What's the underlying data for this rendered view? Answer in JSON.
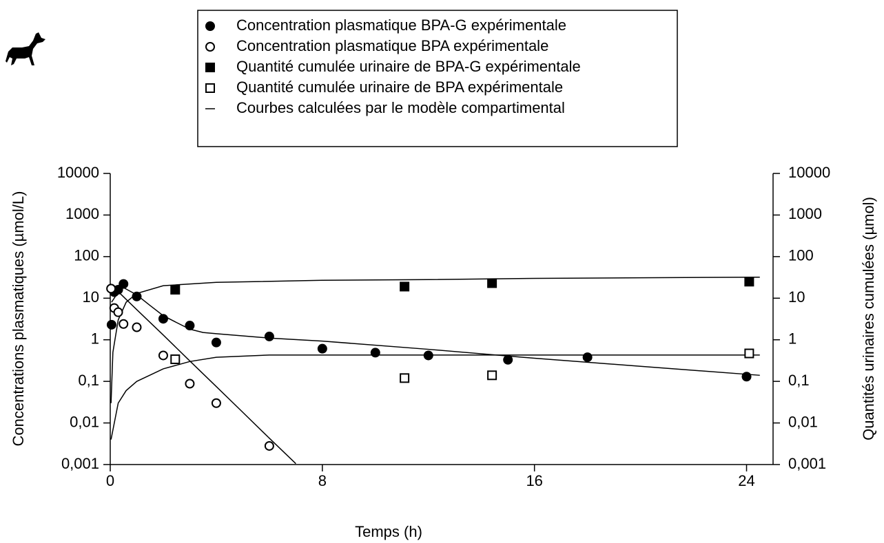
{
  "chart_data": {
    "type": "scatter",
    "log_scale": true,
    "x_label": "Temps (h)",
    "y_label": "Concentrations plasmatiques (µmol/L)",
    "y2_label": "Quantités urinaires cumulées (µmol)",
    "xlim": [
      0,
      25
    ],
    "xticks": [
      0,
      8,
      16,
      24
    ],
    "ylim": [
      0.001,
      10000
    ],
    "yticks": [
      {
        "value": 0.001,
        "label": "0,001"
      },
      {
        "value": 0.01,
        "label": "0,01"
      },
      {
        "value": 0.1,
        "label": "0,1"
      },
      1,
      10,
      100,
      1000,
      10000
    ],
    "y2lim": [
      0.001,
      10000
    ],
    "y2ticks": [
      {
        "value": 0.001,
        "label": "0,001"
      },
      {
        "value": 0.01,
        "label": "0,01"
      },
      {
        "value": 0.1,
        "label": "0,1"
      },
      1,
      10,
      100,
      1000,
      10000
    ],
    "series": [
      {
        "name": "Concentration plasmatique BPA-G expérimentale",
        "marker": "filled-circle",
        "color": "#000000",
        "x": [
          0.05,
          0.15,
          0.3,
          0.5,
          1,
          2,
          3,
          4,
          6,
          8,
          10,
          12,
          15,
          18,
          24
        ],
        "values": [
          2.3,
          14,
          16,
          22,
          11,
          3.2,
          2.2,
          0.86,
          1.2,
          0.61,
          0.49,
          0.42,
          0.33,
          0.38,
          0.13
        ]
      },
      {
        "name": "Concentration plasmatique BPA expérimentale",
        "marker": "open-circle",
        "color": "#000000",
        "x": [
          0.03,
          0.15,
          0.3,
          0.5,
          1,
          2,
          3,
          4,
          6
        ],
        "values": [
          17,
          5.8,
          4.6,
          2.4,
          2,
          0.42,
          0.088,
          0.03,
          0.0028
        ]
      },
      {
        "name": "Quantité cumulée urinaire de BPA-G expérimentale",
        "marker": "filled-square",
        "color": "#000000",
        "axis": "y2",
        "x": [
          2.45,
          11.1,
          14.4,
          24.1
        ],
        "values": [
          16,
          19,
          23,
          25
        ]
      },
      {
        "name": "Quantité cumulée urinaire de BPA expérimentale",
        "marker": "open-square",
        "color": "#000000",
        "axis": "y2",
        "x": [
          2.45,
          11.1,
          14.4,
          24.1
        ],
        "values": [
          0.34,
          0.12,
          0.14,
          0.47
        ]
      }
    ],
    "model_curves": {
      "name": "Courbes calculées par le modèle compartimental",
      "color": "#000000",
      "lines": [
        {
          "x": [
            0.05,
            0.3,
            0.5,
            1,
            1.5,
            2,
            2.5,
            3,
            3.5,
            4,
            6,
            8,
            12,
            16,
            20,
            24.5
          ],
          "values": [
            8,
            14,
            18,
            12,
            6.7,
            3.8,
            2.6,
            1.8,
            1.5,
            1.4,
            1.1,
            0.93,
            0.59,
            0.36,
            0.23,
            0.14
          ]
        },
        {
          "x": [
            0,
            1,
            2,
            3,
            4,
            5,
            6,
            7
          ],
          "values": [
            22,
            5.3,
            1.3,
            0.31,
            0.075,
            0.018,
            0.0043,
            0.00105
          ]
        },
        {
          "axis": "y2",
          "x": [
            0.03,
            0.1,
            0.3,
            0.6,
            1,
            2,
            4,
            8,
            12,
            16,
            20,
            24.5
          ],
          "values": [
            0.03,
            0.5,
            3,
            8,
            13,
            20,
            24,
            27,
            28,
            30,
            31,
            32
          ]
        },
        {
          "axis": "y2",
          "x": [
            0.03,
            0.3,
            0.6,
            1,
            2,
            3,
            4,
            6,
            24.5
          ],
          "values": [
            0.004,
            0.03,
            0.06,
            0.1,
            0.2,
            0.3,
            0.38,
            0.43,
            0.43
          ]
        }
      ]
    }
  }
}
